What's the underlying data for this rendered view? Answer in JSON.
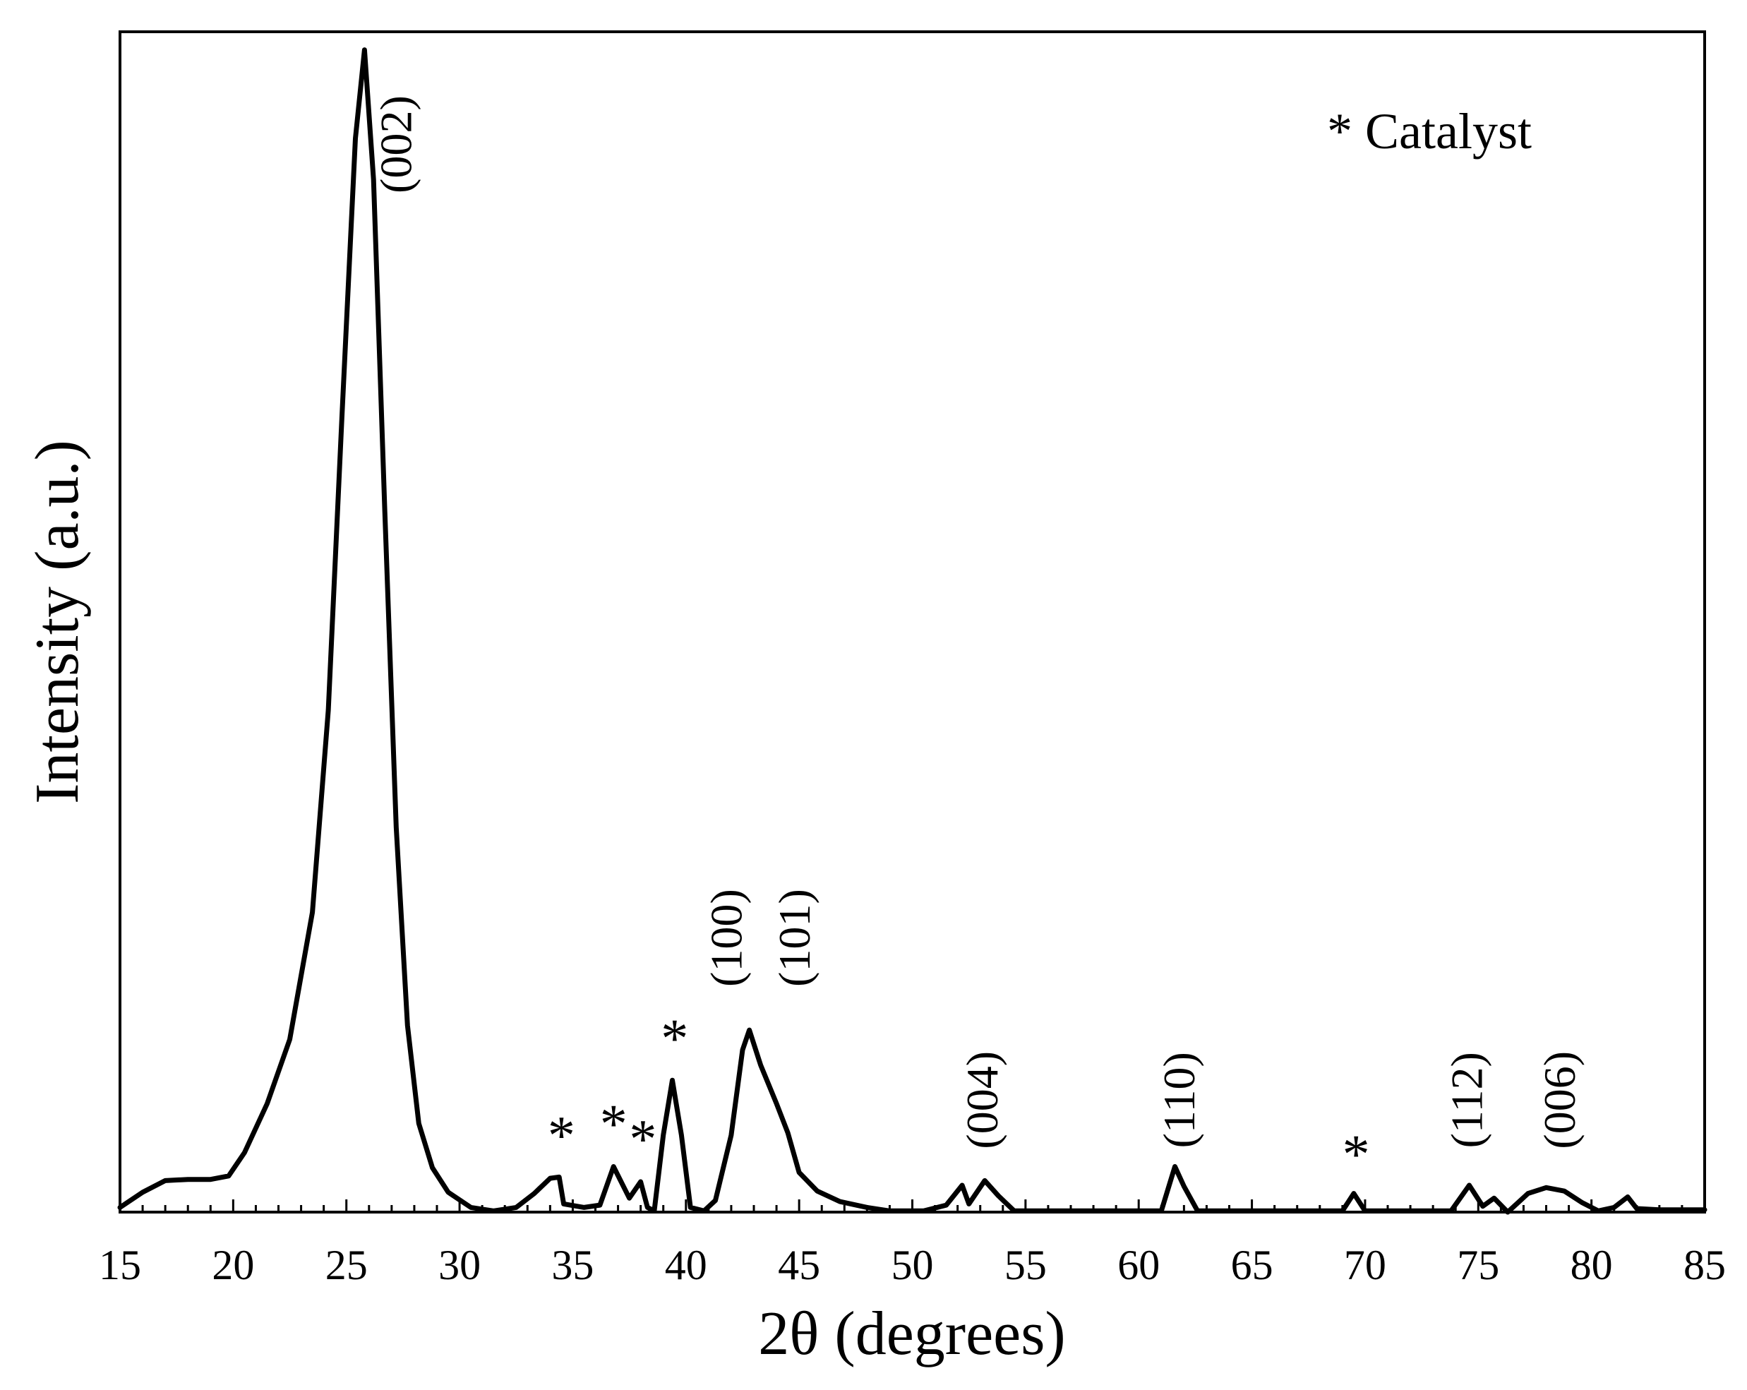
{
  "chart_data": {
    "type": "line",
    "xlabel": "2θ (degrees)",
    "ylabel": "Intensity (a.u.)",
    "xlim": [
      15,
      85
    ],
    "ylim": [
      0,
      100
    ],
    "x_ticks": [
      "15",
      "20",
      "25",
      "30",
      "35",
      "40",
      "45",
      "50",
      "55",
      "60",
      "65",
      "70",
      "75",
      "80",
      "85"
    ],
    "y_ticks": [],
    "legend": {
      "text": "* Catalyst",
      "position": "top-right"
    },
    "series": [
      {
        "points": [
          [
            15.0,
            0.4
          ],
          [
            16.0,
            1.7
          ],
          [
            17.0,
            2.7
          ],
          [
            18.0,
            2.8
          ],
          [
            19.0,
            2.8
          ],
          [
            19.8,
            3.1
          ],
          [
            20.5,
            5.1
          ],
          [
            21.5,
            9.3
          ],
          [
            22.5,
            14.8
          ],
          [
            23.5,
            25.7
          ],
          [
            24.2,
            43.0
          ],
          [
            24.8,
            68.0
          ],
          [
            25.4,
            92.0
          ],
          [
            25.8,
            99.6
          ],
          [
            26.2,
            88.5
          ],
          [
            26.7,
            60.0
          ],
          [
            27.2,
            33.0
          ],
          [
            27.7,
            16.0
          ],
          [
            28.2,
            7.6
          ],
          [
            28.8,
            3.8
          ],
          [
            29.5,
            1.7
          ],
          [
            30.5,
            0.4
          ],
          [
            31.5,
            0.1
          ],
          [
            32.5,
            0.4
          ],
          [
            33.3,
            1.6
          ],
          [
            34.0,
            2.9
          ],
          [
            34.4,
            3.0
          ],
          [
            34.6,
            0.7
          ],
          [
            35.5,
            0.4
          ],
          [
            36.2,
            0.6
          ],
          [
            36.8,
            3.9
          ],
          [
            37.5,
            1.2
          ],
          [
            38.0,
            2.6
          ],
          [
            38.3,
            0.4
          ],
          [
            38.6,
            0.1
          ],
          [
            39.0,
            6.6
          ],
          [
            39.4,
            11.3
          ],
          [
            39.8,
            6.6
          ],
          [
            40.2,
            0.4
          ],
          [
            40.8,
            0.1
          ],
          [
            41.3,
            1.0
          ],
          [
            42.0,
            6.6
          ],
          [
            42.5,
            13.9
          ],
          [
            42.8,
            15.6
          ],
          [
            43.3,
            12.6
          ],
          [
            44.0,
            9.3
          ],
          [
            44.5,
            6.8
          ],
          [
            45.0,
            3.4
          ],
          [
            45.8,
            1.8
          ],
          [
            46.8,
            0.9
          ],
          [
            48.0,
            0.4
          ],
          [
            49.0,
            0.1
          ],
          [
            50.5,
            0.1
          ],
          [
            51.5,
            0.6
          ],
          [
            52.2,
            2.3
          ],
          [
            52.5,
            0.7
          ],
          [
            53.2,
            2.7
          ],
          [
            53.8,
            1.4
          ],
          [
            54.5,
            0.1
          ],
          [
            61.0,
            0.1
          ],
          [
            61.6,
            3.9
          ],
          [
            62.0,
            2.2
          ],
          [
            62.6,
            0.1
          ],
          [
            69.0,
            0.1
          ],
          [
            69.5,
            1.6
          ],
          [
            70.0,
            0.1
          ],
          [
            73.8,
            0.1
          ],
          [
            74.6,
            2.3
          ],
          [
            75.2,
            0.5
          ],
          [
            75.7,
            1.2
          ],
          [
            76.3,
            0.0
          ],
          [
            77.2,
            1.6
          ],
          [
            78.0,
            2.1
          ],
          [
            78.8,
            1.8
          ],
          [
            79.6,
            0.8
          ],
          [
            80.3,
            0.1
          ],
          [
            81.0,
            0.4
          ],
          [
            81.6,
            1.3
          ],
          [
            82.0,
            0.3
          ],
          [
            83.0,
            0.2
          ],
          [
            85.0,
            0.2
          ]
        ]
      }
    ],
    "annotations": [
      {
        "text": "(002)",
        "x": 27.4,
        "y": 91.5,
        "rotate": true
      },
      {
        "text": "*",
        "x": 34.5,
        "y": 5.0
      },
      {
        "text": "*",
        "x": 36.8,
        "y": 6.0
      },
      {
        "text": "*",
        "x": 38.1,
        "y": 4.7
      },
      {
        "text": "*",
        "x": 39.5,
        "y": 13.3
      },
      {
        "text": "(100)",
        "x": 42.0,
        "y": 23.5,
        "rotate": true
      },
      {
        "text": "(101)",
        "x": 45.0,
        "y": 23.5,
        "rotate": true
      },
      {
        "text": "(004)",
        "x": 53.3,
        "y": 9.6,
        "rotate": true
      },
      {
        "text": "(110)",
        "x": 62.0,
        "y": 9.6,
        "rotate": true
      },
      {
        "text": "*",
        "x": 69.6,
        "y": 3.4
      },
      {
        "text": "(112)",
        "x": 74.7,
        "y": 9.6,
        "rotate": true
      },
      {
        "text": "(006)",
        "x": 78.8,
        "y": 9.6,
        "rotate": true
      }
    ],
    "grid": false
  }
}
